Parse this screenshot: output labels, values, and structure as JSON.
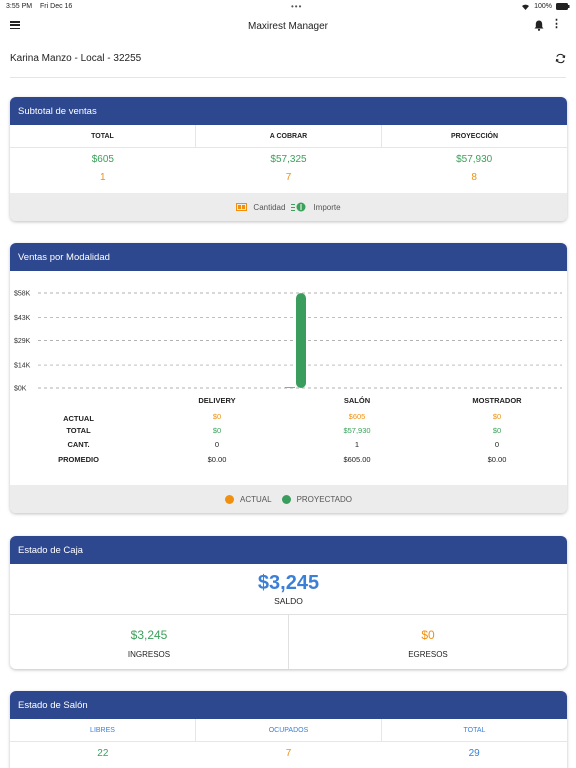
{
  "status": {
    "time": "3:55 PM",
    "date": "Fri Dec 16",
    "battery": "100%"
  },
  "app": {
    "title": "Maxirest Manager"
  },
  "location": {
    "label": "Karina Manzo - Local - 32255"
  },
  "subtotal": {
    "title": "Subtotal de ventas",
    "columns": [
      {
        "header": "TOTAL",
        "amount": "$605",
        "count": "1"
      },
      {
        "header": "A COBRAR",
        "amount": "$57,325",
        "count": "7"
      },
      {
        "header": "PROYECCIÓN",
        "amount": "$57,930",
        "count": "8"
      }
    ],
    "legend": {
      "cantidad": "Cantidad",
      "importe": "Importe"
    }
  },
  "modalidad": {
    "title": "Ventas por Modalidad",
    "columns": [
      "DELIVERY",
      "SALÓN",
      "MOSTRADOR"
    ],
    "rows": [
      {
        "label": "ACTUAL",
        "values": [
          "$0",
          "$605",
          "$0"
        ]
      },
      {
        "label": "TOTAL",
        "values": [
          "$0",
          "$57,930",
          "$0"
        ]
      },
      {
        "label": "CANT.",
        "values": [
          "0",
          "1",
          "0"
        ]
      },
      {
        "label": "PROMEDIO",
        "values": [
          "$0.00",
          "$605.00",
          "$0.00"
        ]
      }
    ],
    "legend": {
      "actual": "ACTUAL",
      "proyectado": "PROYECTADO"
    }
  },
  "chart_data": {
    "type": "bar",
    "categories": [
      "DELIVERY",
      "SALÓN",
      "MOSTRADOR"
    ],
    "series": [
      {
        "name": "ACTUAL",
        "values": [
          0,
          605,
          0
        ],
        "color": "#f0900e"
      },
      {
        "name": "PROYECTADO",
        "values": [
          0,
          57930,
          0
        ],
        "color": "#3a9d5d"
      }
    ],
    "y_ticks": [
      "$58K",
      "$43K",
      "$29K",
      "$14K",
      "$0K"
    ],
    "y_tick_values": [
      58000,
      43000,
      29000,
      14000,
      0
    ],
    "ylim": [
      0,
      58000
    ],
    "grid": true,
    "legend_position": "bottom"
  },
  "caja": {
    "title": "Estado de Caja",
    "saldo_value": "$3,245",
    "saldo_label": "SALDO",
    "ingresos_value": "$3,245",
    "ingresos_label": "INGRESOS",
    "egresos_value": "$0",
    "egresos_label": "EGRESOS"
  },
  "salon": {
    "title": "Estado de Salón",
    "columns": [
      {
        "header": "LIBRES",
        "value": "22"
      },
      {
        "header": "OCUPADOS",
        "value": "7"
      },
      {
        "header": "TOTAL",
        "value": "29"
      }
    ]
  },
  "colors": {
    "header_blue": "#2e4890",
    "green": "#3aa05a",
    "orange": "#f0900e",
    "blue": "#3b7fd6"
  },
  "icons": [
    "menu-icon",
    "bell-icon",
    "more-vertical-icon",
    "refresh-icon",
    "wifi-icon",
    "battery-icon"
  ]
}
